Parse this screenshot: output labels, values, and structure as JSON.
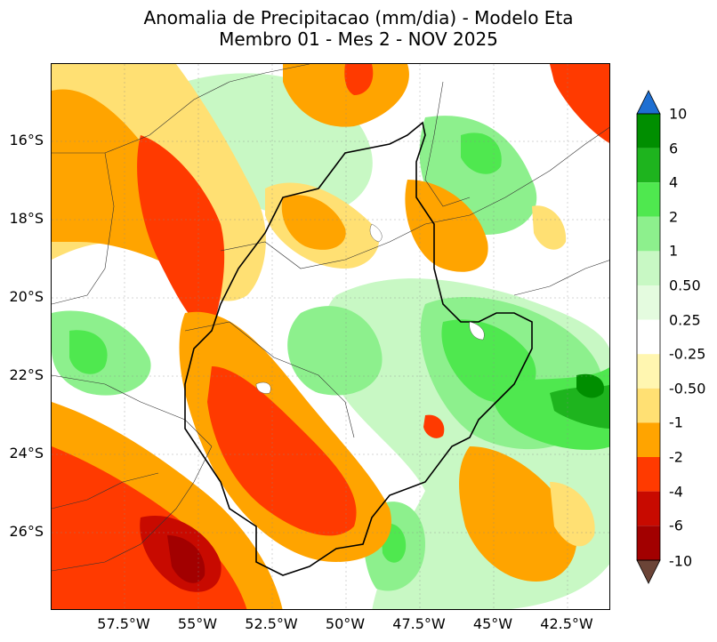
{
  "title": {
    "line1": "Anomalia de Precipitacao (mm/dia) - Modelo Eta",
    "line2": "Membro 01 - Mes 2 - NOV 2025"
  },
  "map": {
    "lat_labels": [
      "16°S",
      "18°S",
      "20°S",
      "22°S",
      "24°S",
      "26°S"
    ],
    "lon_labels": [
      "57.5°W",
      "55°W",
      "52.5°W",
      "50°W",
      "47.5°W",
      "45°W",
      "42.5°W"
    ]
  },
  "colorbar": {
    "tick_labels": [
      "10",
      "6",
      "4",
      "2",
      "1",
      "0.50",
      "0.25",
      "-0.25",
      "-0.50",
      "-1",
      "-2",
      "-4",
      "-6",
      "-10"
    ],
    "colors": {
      "above_max": "#1e6fd2",
      "c10_6": "#008e00",
      "c6_4": "#1eb41e",
      "c4_2": "#4fe84f",
      "c2_1": "#8df08d",
      "c1_050": "#c8f8c4",
      "c050_025": "#e4fbdf",
      "neutral": "#ffffff",
      "cm025_m050": "#fff6b0",
      "cm050_m1": "#ffe073",
      "cm1_m2": "#ffa400",
      "cm2_m4": "#ff3a00",
      "cm4_m6": "#c80a00",
      "cm6_m10": "#a20000",
      "below_min": "#6b4437"
    }
  }
}
